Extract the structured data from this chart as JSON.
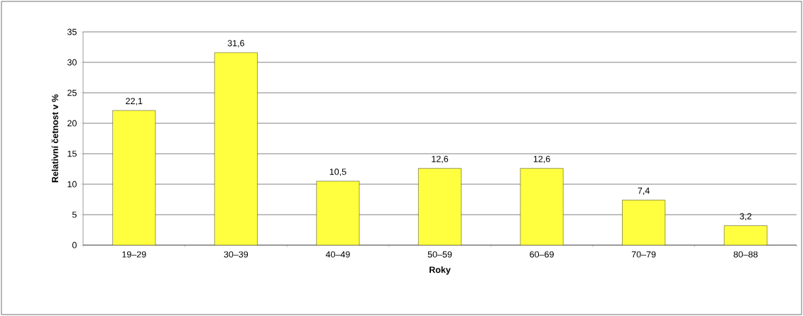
{
  "chart_data": {
    "type": "bar",
    "xlabel": "Roky",
    "ylabel": "Relativní četnost v %",
    "categories": [
      "19–29",
      "30–39",
      "40–49",
      "50–59",
      "60–69",
      "70–79",
      "80–88"
    ],
    "values": [
      22.1,
      31.6,
      10.5,
      12.6,
      12.6,
      7.4,
      3.2
    ],
    "value_labels": [
      "22,1",
      "31,6",
      "10,5",
      "12,6",
      "12,6",
      "7,4",
      "3,2"
    ],
    "color": "#ffff40",
    "ylim": [
      0,
      35
    ],
    "yticks": [
      0,
      5,
      10,
      15,
      20,
      25,
      30,
      35
    ],
    "grid": "y"
  }
}
